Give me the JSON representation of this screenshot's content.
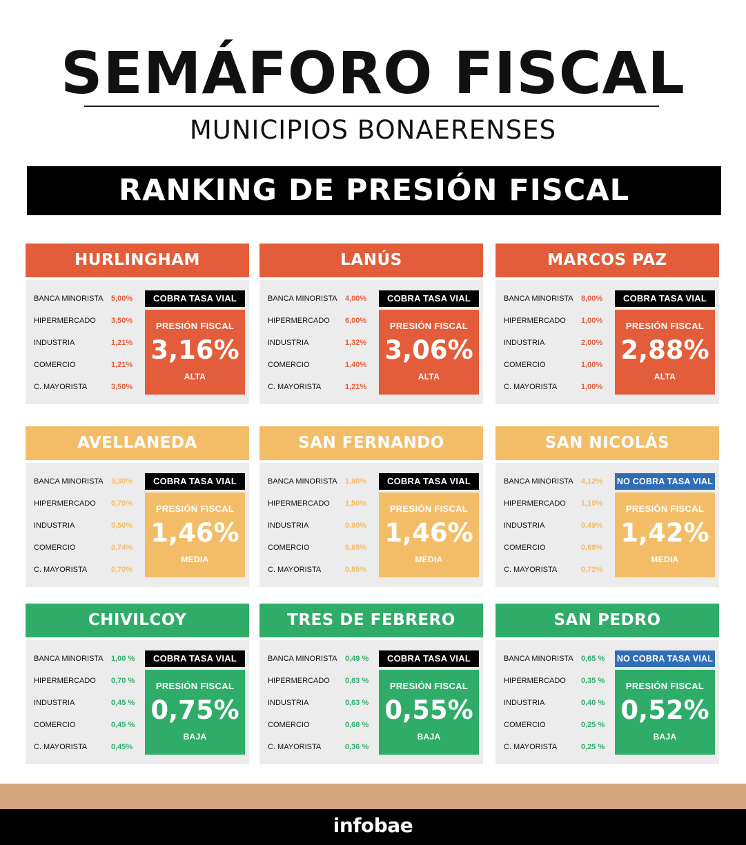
{
  "header": {
    "title": "SEMÁFORO FISCAL",
    "subtitle": "MUNICIPIOS BONAERENSES",
    "banner": "RANKING DE PRESIÓN FISCAL"
  },
  "labels": {
    "presion": "PRESIÓN FISCAL"
  },
  "colors": {
    "alta": "#e35d3a",
    "media": "#f3bd68",
    "baja": "#2fad68",
    "vial_black": "#000000",
    "vial_blue": "#2f6eb7"
  },
  "cards": [
    {
      "name": "HURLINGHAM",
      "level": "ALTA",
      "color": "alta",
      "vial": "COBRA TASA VIAL",
      "vial_color": "black",
      "presion": "3,16%",
      "rates": [
        {
          "label": "BANCA MINORISTA",
          "value": "5,00%"
        },
        {
          "label": "HIPERMERCADO",
          "value": "3,50%"
        },
        {
          "label": "INDUSTRIA",
          "value": "1,21%"
        },
        {
          "label": "COMERCIO",
          "value": "1,21%"
        },
        {
          "label": "C. MAYORISTA",
          "value": "3,50%"
        }
      ]
    },
    {
      "name": "LANÚS",
      "level": "ALTA",
      "color": "alta",
      "vial": "COBRA TASA VIAL",
      "vial_color": "black",
      "presion": "3,06%",
      "rates": [
        {
          "label": "BANCA MINORISTA",
          "value": "4,00%"
        },
        {
          "label": "HIPERMERCADO",
          "value": "6,00%"
        },
        {
          "label": "INDUSTRIA",
          "value": "1,32%"
        },
        {
          "label": "COMERCIO",
          "value": "1,40%"
        },
        {
          "label": "C. MAYORISTA",
          "value": "1,21%"
        }
      ]
    },
    {
      "name": "MARCOS PAZ",
      "level": "ALTA",
      "color": "alta",
      "vial": "COBRA TASA VIAL",
      "vial_color": "black",
      "presion": "2,88%",
      "rates": [
        {
          "label": "BANCA MINORISTA",
          "value": "8,00%"
        },
        {
          "label": "HIPERMERCADO",
          "value": "1,00%"
        },
        {
          "label": "INDUSTRIA",
          "value": "2,00%"
        },
        {
          "label": "COMERCIO",
          "value": "1,00%"
        },
        {
          "label": "C. MAYORISTA",
          "value": "1,00%"
        }
      ]
    },
    {
      "name": "AVELLANEDA",
      "level": "MEDIA",
      "color": "media",
      "vial": "COBRA TASA VIAL",
      "vial_color": "black",
      "presion": "1,46%",
      "rates": [
        {
          "label": "BANCA MINORISTA",
          "value": "3,30%"
        },
        {
          "label": "HIPERMERCADO",
          "value": "0,70%"
        },
        {
          "label": "INDUSTRIA",
          "value": "0,50%"
        },
        {
          "label": "COMERCIO",
          "value": "0,74%"
        },
        {
          "label": "C. MAYORISTA",
          "value": "0,70%"
        }
      ]
    },
    {
      "name": "SAN FERNANDO",
      "level": "MEDIA",
      "color": "media",
      "vial": "COBRA TASA VIAL",
      "vial_color": "black",
      "presion": "1,46%",
      "rates": [
        {
          "label": "BANCA MINORISTA",
          "value": "1,80%"
        },
        {
          "label": "HIPERMERCADO",
          "value": "1,50%"
        },
        {
          "label": "INDUSTRIA",
          "value": "0,90%"
        },
        {
          "label": "COMERCIO",
          "value": "0,85%"
        },
        {
          "label": "C. MAYORISTA",
          "value": "0,85%"
        }
      ]
    },
    {
      "name": "SAN NICOLÁS",
      "level": "MEDIA",
      "color": "media",
      "vial": "NO COBRA TASA VIAL",
      "vial_color": "blue",
      "presion": "1,42%",
      "rates": [
        {
          "label": "BANCA MINORISTA",
          "value": "4,12%"
        },
        {
          "label": "HIPERMERCADO",
          "value": "1,10%"
        },
        {
          "label": "INDUSTRIA",
          "value": "0,49%"
        },
        {
          "label": "COMERCIO",
          "value": "0,68%"
        },
        {
          "label": "C. MAYORISTA",
          "value": "0,72%"
        }
      ]
    },
    {
      "name": "CHIVILCOY",
      "level": "BAJA",
      "color": "baja",
      "vial": "COBRA TASA VIAL",
      "vial_color": "black",
      "presion": "0,75%",
      "rates": [
        {
          "label": "BANCA MINORISTA",
          "value": "1,00 %"
        },
        {
          "label": "HIPERMERCADO",
          "value": "0,70 %"
        },
        {
          "label": "INDUSTRIA",
          "value": "0,45 %"
        },
        {
          "label": "COMERCIO",
          "value": "0,45 %"
        },
        {
          "label": "C. MAYORISTA",
          "value": "0,45%"
        }
      ]
    },
    {
      "name": "TRES DE FEBRERO",
      "level": "BAJA",
      "color": "baja",
      "vial": "COBRA TASA VIAL",
      "vial_color": "black",
      "presion": "0,55%",
      "rates": [
        {
          "label": "BANCA MINORISTA",
          "value": "0,49 %"
        },
        {
          "label": "HIPERMERCADO",
          "value": "0,63 %"
        },
        {
          "label": "INDUSTRIA",
          "value": "0,63 %"
        },
        {
          "label": "COMERCIO",
          "value": "0,68 %"
        },
        {
          "label": "C. MAYORISTA",
          "value": "0,36 %"
        }
      ]
    },
    {
      "name": "SAN PEDRO",
      "level": "BAJA",
      "color": "baja",
      "vial": "NO COBRA TASA VIAL",
      "vial_color": "blue",
      "presion": "0,52%",
      "rates": [
        {
          "label": "BANCA MINORISTA",
          "value": "0,65 %"
        },
        {
          "label": "HIPERMERCADO",
          "value": "0,35 %"
        },
        {
          "label": "INDUSTRIA",
          "value": "0,40 %"
        },
        {
          "label": "COMERCIO",
          "value": "0,25 %"
        },
        {
          "label": "C. MAYORISTA",
          "value": "0,25 %"
        }
      ]
    }
  ],
  "footer": {
    "brand": "infobae"
  }
}
